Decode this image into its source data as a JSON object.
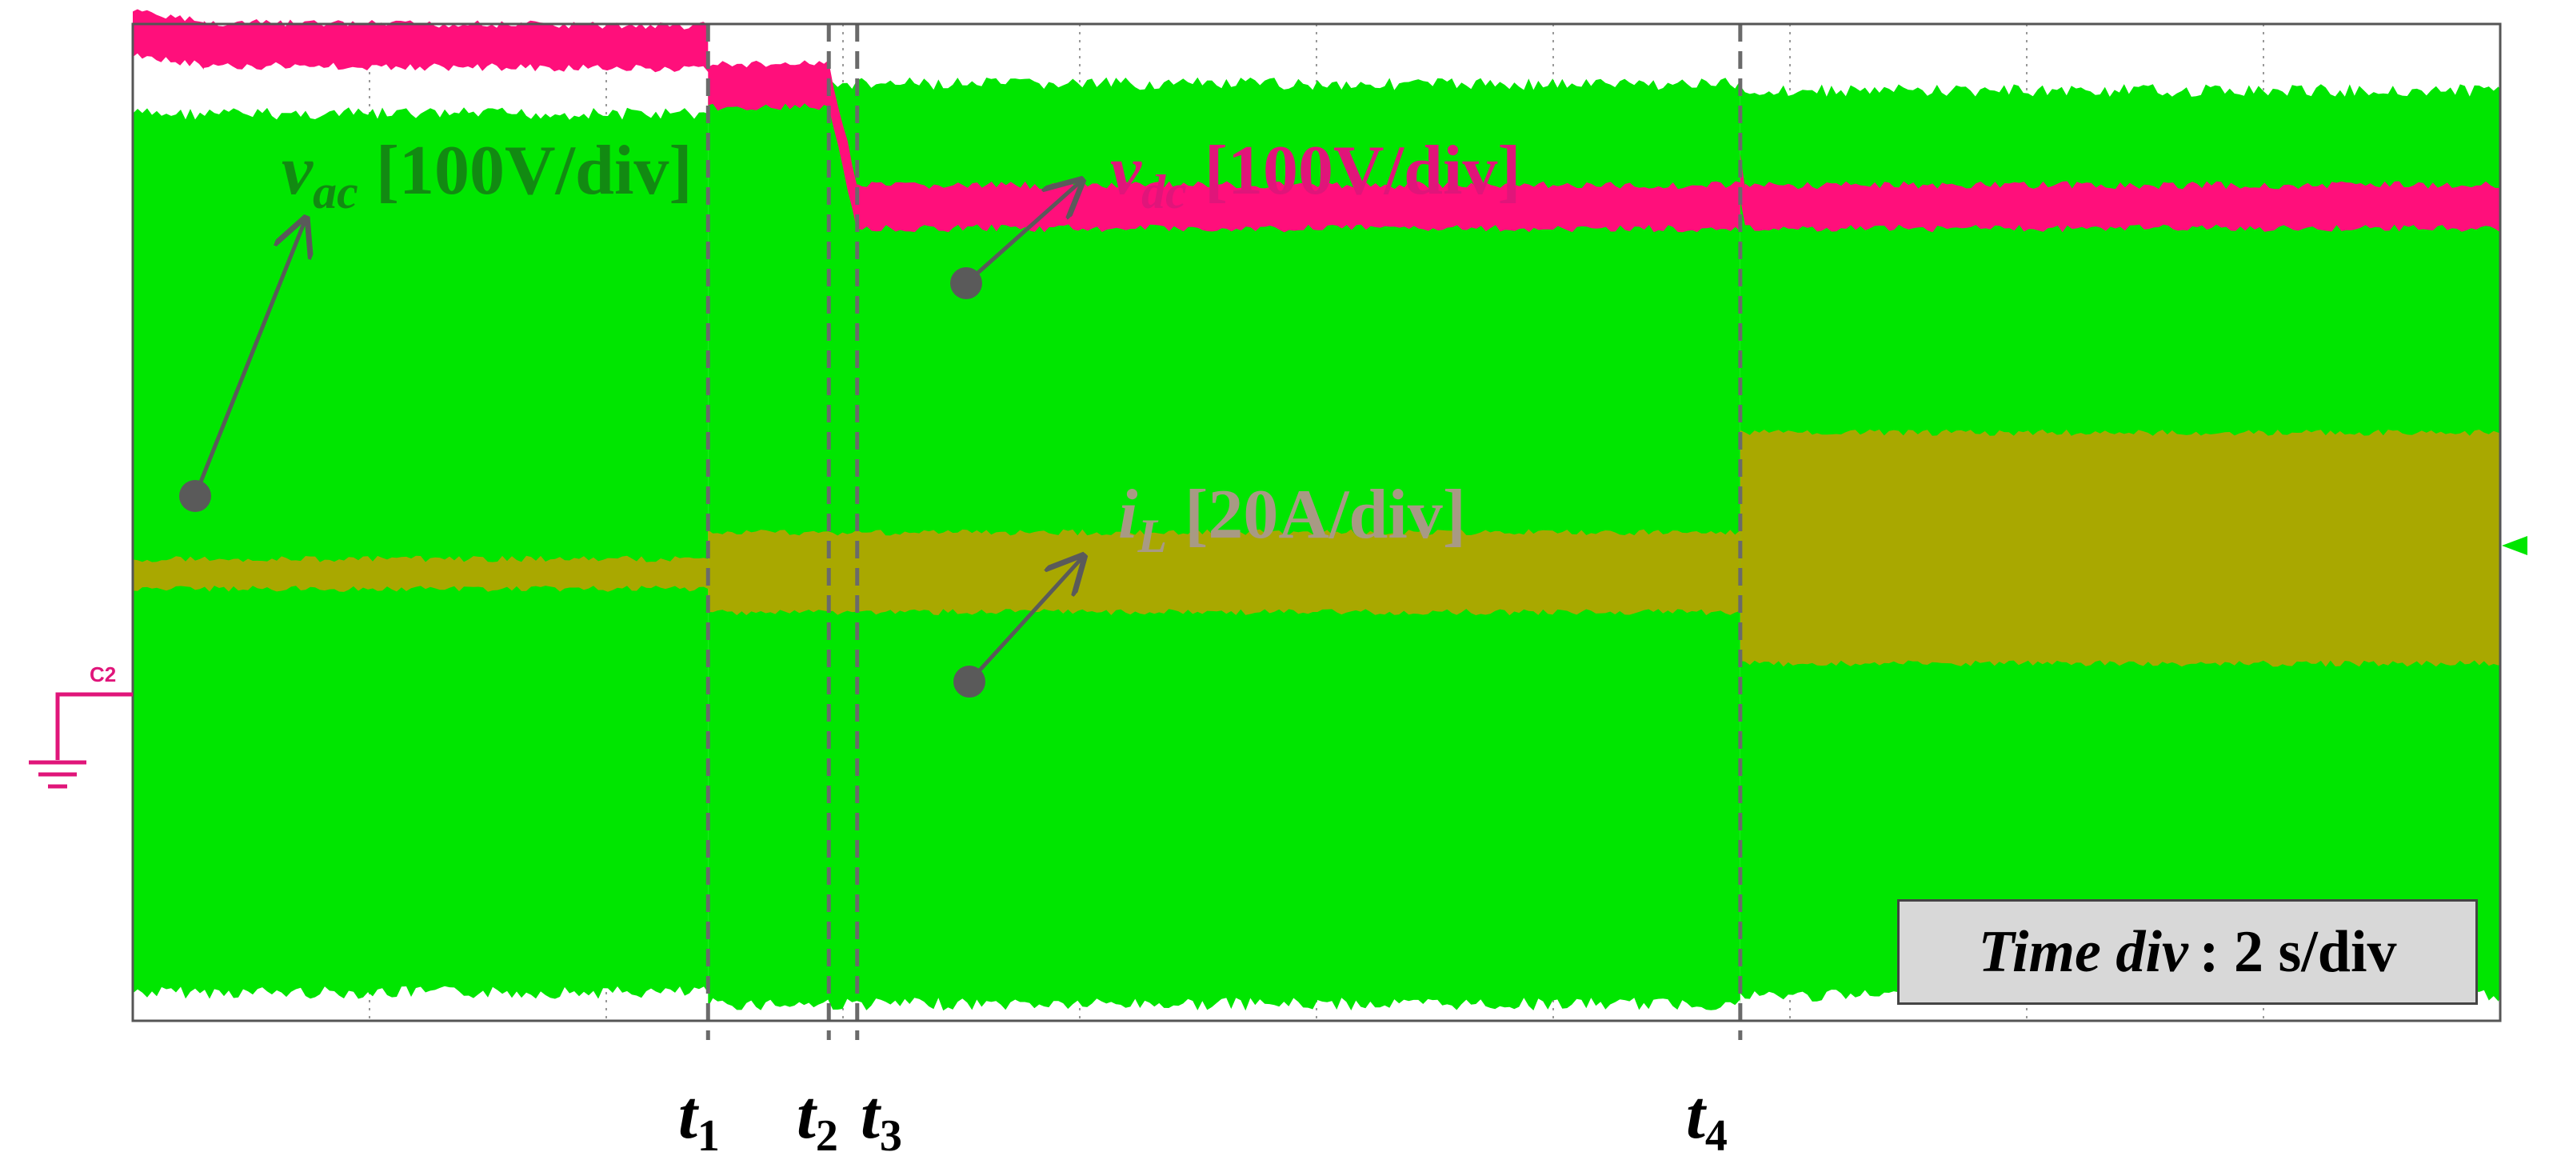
{
  "chart_data": {
    "type": "line",
    "title": "",
    "xlabel": "",
    "ylabel": "",
    "grid": true,
    "x_divisions": 10,
    "y_divisions": 6,
    "time_scale": {
      "label_italic": "Time div",
      "label_rest": " : 2 s/div"
    },
    "event_markers": [
      {
        "base": "t",
        "sub": "1",
        "t_div": 2.43
      },
      {
        "base": "t",
        "sub": "2",
        "t_div": 2.94
      },
      {
        "base": "t",
        "sub": "3",
        "t_div": 3.06
      },
      {
        "base": "t",
        "sub": "4",
        "t_div": 6.79
      }
    ],
    "series": [
      {
        "name": "v_ac",
        "label_base": "v",
        "label_sub": "ac",
        "scale": "[100V/div]",
        "color": "#00e600",
        "label_color": "#128a12",
        "segments": [
          {
            "t0": 0.0,
            "t1": 2.43,
            "top_div": 0.54,
            "bottom_div": 5.83
          },
          {
            "t0": 2.43,
            "t1": 6.79,
            "top_div": 0.36,
            "bottom_div": 5.9
          },
          {
            "t0": 6.79,
            "t1": 10.0,
            "top_div": 0.4,
            "bottom_div": 5.85
          }
        ]
      },
      {
        "name": "v_dc",
        "label_base": "v",
        "label_sub": "dc",
        "scale": "[100V/div]",
        "color": "#ff0f7b",
        "label_color": "#e0157a",
        "points_div": [
          [
            0.0,
            0.05
          ],
          [
            0.3,
            0.12
          ],
          [
            2.43,
            0.14
          ],
          [
            2.43,
            0.37
          ],
          [
            2.94,
            0.37
          ],
          [
            3.06,
            1.1
          ],
          [
            6.79,
            1.1
          ],
          [
            6.79,
            0.92
          ],
          [
            6.81,
            1.1
          ],
          [
            10.0,
            1.1
          ]
        ],
        "band_div": 0.26
      },
      {
        "name": "i_L",
        "label_base": "i",
        "label_sub": "L",
        "scale": "[20A/div]",
        "color": "#a9a800",
        "label_color": "#a89a84",
        "segments": [
          {
            "t0": 0.0,
            "t1": 2.43,
            "top_div": 3.22,
            "bottom_div": 3.4
          },
          {
            "t0": 2.43,
            "t1": 6.79,
            "top_div": 3.06,
            "bottom_div": 3.54
          },
          {
            "t0": 6.79,
            "t1": 10.0,
            "top_div": 2.46,
            "bottom_div": 3.85
          }
        ]
      }
    ]
  },
  "colors": {
    "grid": "#9a9a9a",
    "marker_line": "#6a6a6a",
    "annotation": "#5a5a5a",
    "ground": "#e0157a"
  },
  "channel_marker": "C2"
}
